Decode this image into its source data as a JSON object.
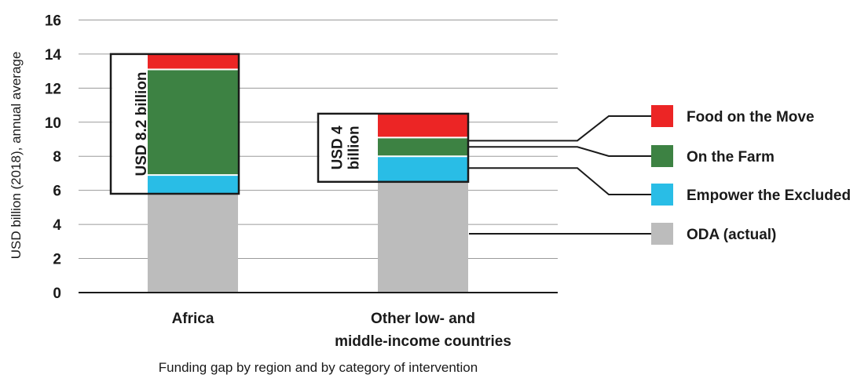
{
  "chart_data": {
    "type": "bar",
    "stacked": true,
    "ylabel": "USD billion (2018), annual average",
    "ylim": [
      0,
      16
    ],
    "yticks": [
      0,
      2,
      4,
      6,
      8,
      10,
      12,
      14,
      16
    ],
    "grid": true,
    "categories": [
      "Africa",
      "Other low- and middle-income countries"
    ],
    "category_lines": [
      [
        "Africa"
      ],
      [
        "Other low- and",
        "middle-income countries"
      ]
    ],
    "series": [
      {
        "name": "ODA (actual)",
        "color": "#bcbcbc",
        "values": [
          5.8,
          6.5
        ]
      },
      {
        "name": "Empower the Excluded",
        "color": "#29bde6",
        "values": [
          1.1,
          1.5
        ]
      },
      {
        "name": "On the Farm",
        "color": "#3d8243",
        "values": [
          6.2,
          1.1
        ]
      },
      {
        "name": "Food on the Move",
        "color": "#ec2525",
        "values": [
          0.9,
          1.4
        ]
      }
    ],
    "legend_order": [
      "Food on the Move",
      "On the Farm",
      "Empower the Excluded",
      "ODA (actual)"
    ],
    "legend_position": "right",
    "annotations": [
      {
        "category": "Africa",
        "lines": [
          "USD 8.2 billion"
        ]
      },
      {
        "category": "Other low- and middle-income countries",
        "lines": [
          "USD 4",
          "billion"
        ]
      }
    ],
    "subtitle": "Funding gap by region and by category of intervention"
  }
}
